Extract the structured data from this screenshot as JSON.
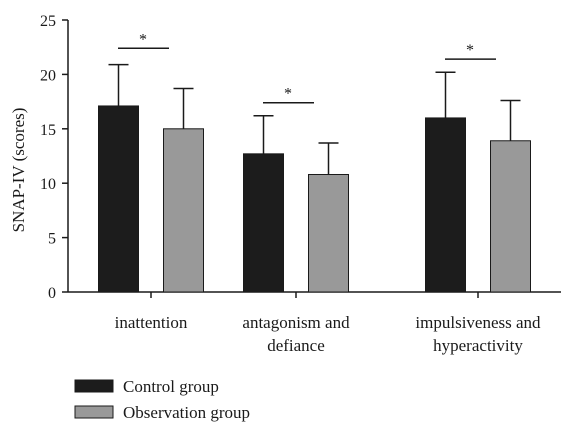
{
  "chart_data": {
    "type": "bar",
    "title": "",
    "xlabel": "",
    "ylabel": "SNAP-IV (scores)",
    "ylim": [
      0,
      25
    ],
    "yticks": [
      0,
      5,
      10,
      15,
      20,
      25
    ],
    "grid": false,
    "legend_position": "bottom-left",
    "categories": [
      [
        "inattention"
      ],
      [
        "antagonism and",
        "defiance"
      ],
      [
        "impulsiveness and",
        "hyperactivity"
      ]
    ],
    "series": [
      {
        "name": "Control group",
        "color": "#1c1c1c",
        "values": [
          17.1,
          12.7,
          16.0
        ],
        "errors": [
          3.8,
          3.5,
          4.2
        ]
      },
      {
        "name": "Observation group",
        "color": "#999999",
        "values": [
          15.0,
          10.8,
          13.9
        ],
        "errors": [
          3.7,
          2.9,
          3.7
        ]
      }
    ],
    "significance": [
      {
        "category_index": 0,
        "label": "*",
        "y": 22.4
      },
      {
        "category_index": 1,
        "label": "*",
        "y": 17.4
      },
      {
        "category_index": 2,
        "label": "*",
        "y": 21.4
      }
    ]
  }
}
